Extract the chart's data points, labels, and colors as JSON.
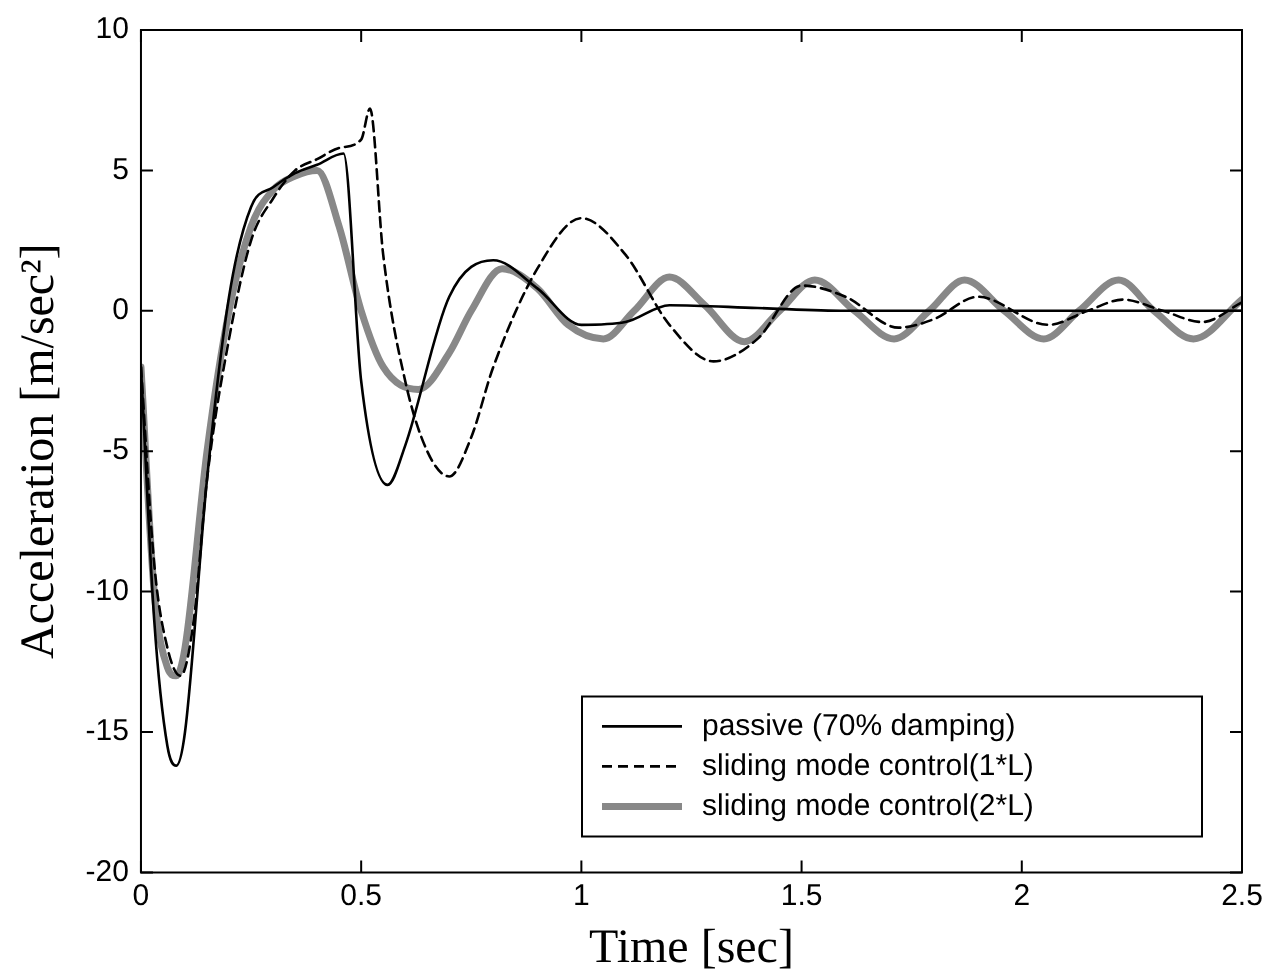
{
  "chart_data": {
    "type": "line",
    "xlabel": "Time [sec]",
    "ylabel": "Acceleration [m/sec²]",
    "xlim": [
      0,
      2.5
    ],
    "xticks": [
      0,
      0.5,
      1,
      1.5,
      2,
      2.5
    ],
    "ylim": [
      -20,
      10
    ],
    "yticks": [
      -20,
      -15,
      -10,
      -5,
      0,
      5,
      10
    ],
    "grid": false,
    "legend": "bottom right",
    "marker": "none",
    "series": [
      {
        "name": "passive (70% damping)",
        "color": "#000000",
        "line_style": "solid",
        "x": [
          0,
          0.03,
          0.06,
          0.08,
          0.1,
          0.15,
          0.2,
          0.25,
          0.3,
          0.35,
          0.4,
          0.46,
          0.5,
          0.56,
          0.6,
          0.7,
          0.8,
          0.9,
          1.0,
          1.1,
          1.2,
          1.4,
          1.6,
          2.0,
          2.5
        ],
        "values": [
          -2,
          -11,
          -15.5,
          -16.2,
          -15,
          -6,
          0.5,
          3.7,
          4.4,
          4.9,
          5.2,
          5.6,
          -2.5,
          -6.2,
          -4.8,
          0.5,
          1.8,
          0.8,
          -0.5,
          -0.4,
          0.2,
          0.1,
          0,
          0,
          0
        ]
      },
      {
        "name": "sliding mode control(1*L)",
        "color": "#000000",
        "line_style": "dashed",
        "x": [
          0,
          0.03,
          0.06,
          0.09,
          0.12,
          0.15,
          0.2,
          0.25,
          0.3,
          0.35,
          0.4,
          0.45,
          0.5,
          0.52,
          0.55,
          0.6,
          0.65,
          0.7,
          0.75,
          0.8,
          0.9,
          1.0,
          1.1,
          1.2,
          1.3,
          1.4,
          1.5,
          1.6,
          1.72,
          1.8,
          1.9,
          2.06,
          2.15,
          2.23,
          2.32,
          2.41,
          2.5
        ],
        "values": [
          -2,
          -9,
          -12,
          -13,
          -11,
          -6,
          -1,
          2.5,
          4,
          5,
          5.4,
          5.8,
          6.1,
          7.2,
          2,
          -2.5,
          -5,
          -5.9,
          -4.5,
          -2,
          1.5,
          3.3,
          2,
          -0.5,
          -1.8,
          -1,
          0.9,
          0.5,
          -0.6,
          -0.3,
          0.5,
          -0.5,
          0,
          0.4,
          0,
          -0.4,
          0.3
        ]
      },
      {
        "name": "sliding mode control(2*L)",
        "color": "#888888",
        "line_style": "solid",
        "x": [
          0,
          0.03,
          0.06,
          0.08,
          0.1,
          0.15,
          0.2,
          0.25,
          0.3,
          0.35,
          0.4,
          0.45,
          0.5,
          0.55,
          0.63,
          0.7,
          0.75,
          0.82,
          0.9,
          0.97,
          1.05,
          1.12,
          1.2,
          1.28,
          1.37,
          1.45,
          1.53,
          1.62,
          1.71,
          1.79,
          1.87,
          1.96,
          2.05,
          2.13,
          2.22,
          2.3,
          2.39,
          2.5
        ],
        "values": [
          -2,
          -10,
          -12.7,
          -13,
          -12,
          -5,
          0,
          3,
          4.3,
          4.8,
          5,
          3,
          0,
          -2,
          -2.8,
          -1.5,
          0,
          1.5,
          0.8,
          -0.5,
          -1,
          0,
          1.2,
          0.2,
          -1.1,
          0,
          1.1,
          0,
          -1,
          0,
          1.1,
          0,
          -1,
          0,
          1.1,
          0,
          -1,
          0.4
        ]
      }
    ]
  }
}
